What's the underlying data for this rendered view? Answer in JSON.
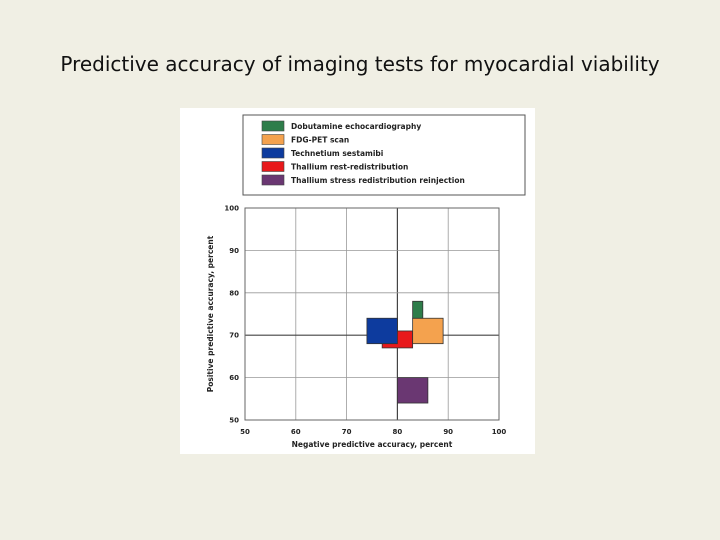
{
  "page": {
    "title": "Predictive accuracy of imaging tests for myocardial viability"
  },
  "chart_data": {
    "type": "scatter",
    "mark": "rectangle-ranges",
    "xlabel": "Negative predictive accuracy, percent",
    "ylabel": "Positive predictive accuracy, percent",
    "xlim": [
      50,
      100
    ],
    "ylim": [
      50,
      100
    ],
    "xticks": [
      50,
      60,
      70,
      80,
      90,
      100
    ],
    "yticks": [
      50,
      60,
      70,
      80,
      90,
      100
    ],
    "grid": true,
    "legend_position": "top",
    "series": [
      {
        "name": "Dobutamine echocardiography",
        "color": "#2e7d4a",
        "x_range": [
          83,
          85
        ],
        "y_range": [
          74,
          78
        ]
      },
      {
        "name": "FDG-PET scan",
        "color": "#f4a24e",
        "x_range": [
          83,
          89
        ],
        "y_range": [
          68,
          74
        ]
      },
      {
        "name": "Technetium sestamibi",
        "color": "#0d3b9e",
        "x_range": [
          74,
          80
        ],
        "y_range": [
          68,
          74
        ]
      },
      {
        "name": "Thallium rest-redistribution",
        "color": "#e8191b",
        "x_range": [
          77,
          83
        ],
        "y_range": [
          67,
          71
        ]
      },
      {
        "name": "Thallium stress redistribution reinjection",
        "color": "#6a3772",
        "x_range": [
          80,
          86
        ],
        "y_range": [
          54,
          60
        ]
      }
    ],
    "draw_order": [
      3,
      2,
      1,
      0,
      4
    ]
  }
}
